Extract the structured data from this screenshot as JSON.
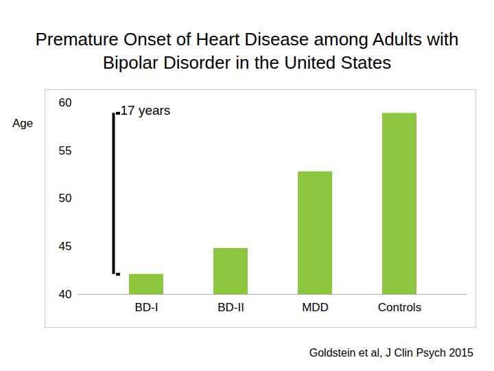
{
  "chart_data": {
    "type": "bar",
    "title": "Premature Onset of Heart Disease among Adults with Bipolar Disorder in the United States",
    "y_label": "Age",
    "categories": [
      "BD-I",
      "BD-II",
      "MDD",
      "Controls"
    ],
    "values": [
      42.1,
      44.8,
      52.8,
      58.9
    ],
    "color": "#8cc63f",
    "ylim": [
      40,
      60
    ],
    "yticks": [
      40,
      45,
      50,
      55,
      60
    ],
    "grid": false,
    "annotation": "17 years",
    "caption": "Goldstein et al, J Clin Psych 2015"
  }
}
